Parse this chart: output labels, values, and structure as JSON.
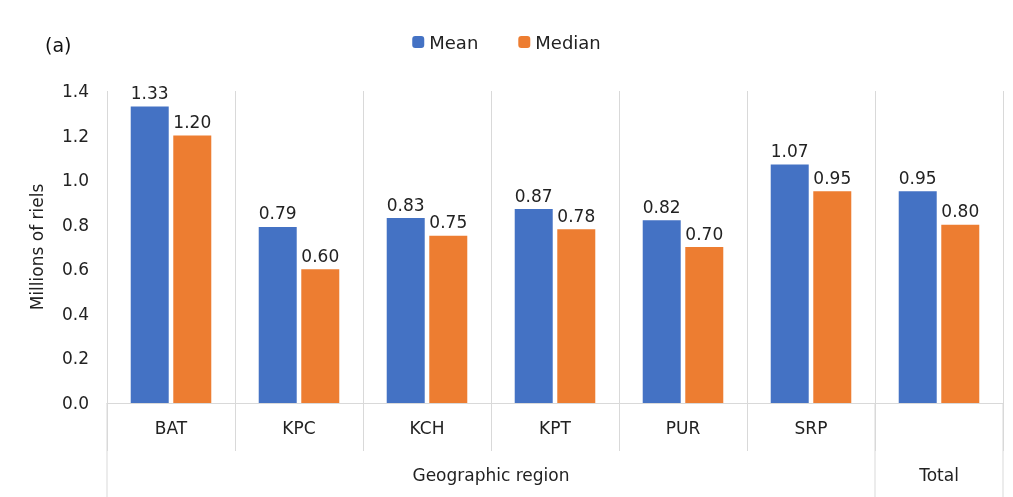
{
  "chart_data": {
    "type": "bar",
    "title": "(a)",
    "ylabel": "Millions of riels",
    "categories": [
      "BAT",
      "KPC",
      "KCH",
      "KPT",
      "PUR",
      "SRP",
      null
    ],
    "series": [
      {
        "name": "Mean",
        "color": "#4472c4",
        "values": [
          1.33,
          0.79,
          0.83,
          0.87,
          0.82,
          1.07,
          0.95
        ],
        "value_labels": [
          "1.33",
          "0.79",
          "0.83",
          "0.87",
          "0.82",
          "1.07",
          "0.95"
        ]
      },
      {
        "name": "Median",
        "color": "#ed7d31",
        "values": [
          1.2,
          0.6,
          0.75,
          0.78,
          0.7,
          0.95,
          0.8
        ],
        "value_labels": [
          "1.20",
          "0.60",
          "0.75",
          "0.78",
          "0.70",
          "0.95",
          "0.80"
        ]
      }
    ],
    "annotations": [
      "Geographic region",
      "Total"
    ],
    "ylim": [
      0,
      1.4
    ],
    "yticks": [
      {
        "value": 0,
        "label": "0.0"
      },
      0.2,
      0.4,
      0.6,
      0.8,
      {
        "value": 1,
        "label": "1.0"
      },
      1.2,
      1.4
    ],
    "grid": false,
    "legend": "top"
  }
}
